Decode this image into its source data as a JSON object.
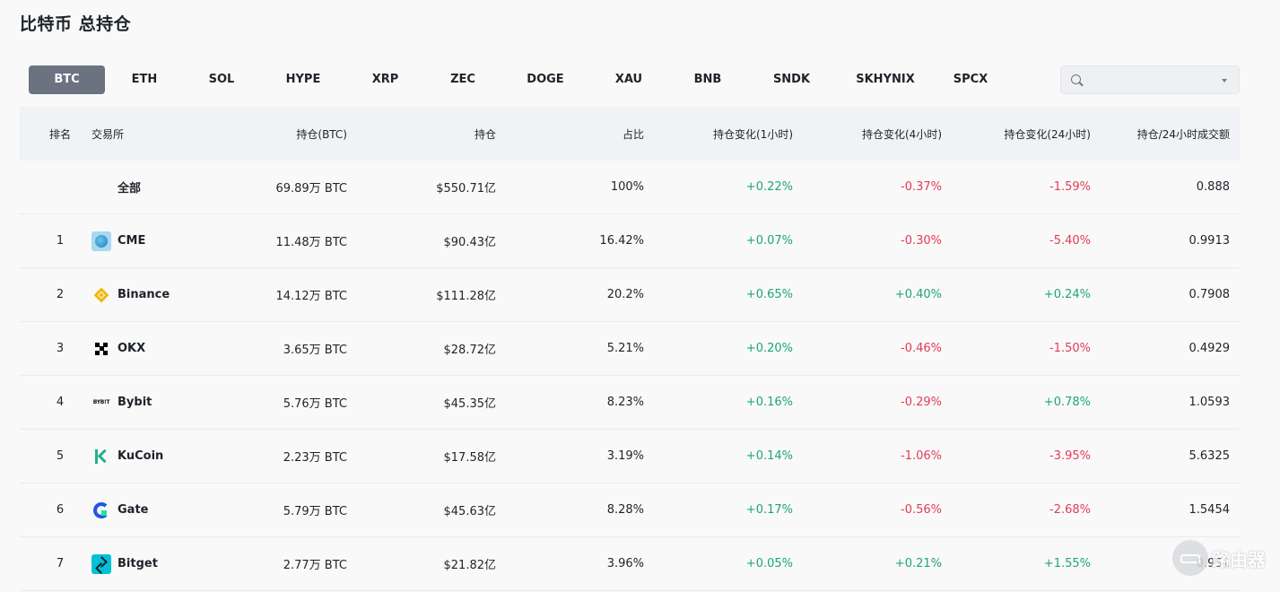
{
  "page": {
    "title": "比特币 总持仓"
  },
  "tabs": [
    {
      "label": "BTC",
      "active": true
    },
    {
      "label": "ETH"
    },
    {
      "label": "SOL"
    },
    {
      "label": "HYPE"
    },
    {
      "label": "XRP"
    },
    {
      "label": "ZEC"
    },
    {
      "label": "DOGE"
    },
    {
      "label": "XAU"
    },
    {
      "label": "BNB"
    },
    {
      "label": "SNDK"
    },
    {
      "label": "SKHYNIX"
    },
    {
      "label": "SPCX"
    }
  ],
  "search": {
    "value": "",
    "placeholder": ""
  },
  "table": {
    "headers": {
      "rank": "排名",
      "exchange": "交易所",
      "oi_btc": "持仓(BTC)",
      "oi_value": "持仓",
      "share": "占比",
      "chg_1h": "持仓变化(1小时)",
      "chg_4h": "持仓变化(4小时)",
      "chg_24h": "持仓变化(24小时)",
      "ratio": "持仓/24小时成交额"
    },
    "total": {
      "label": "全部",
      "oi_btc": "69.89万 BTC",
      "oi_value": "$550.71亿",
      "share": "100%",
      "chg_1h": "+0.22%",
      "chg_4h": "-0.37%",
      "chg_24h": "-1.59%",
      "ratio": "0.888"
    },
    "rows": [
      {
        "rank": "1",
        "exchange": "CME",
        "logo": "cme-globe-icon",
        "oi_btc": "11.48万 BTC",
        "oi_value": "$90.43亿",
        "share": "16.42%",
        "chg_1h": "+0.07%",
        "chg_4h": "-0.30%",
        "chg_24h": "-5.40%",
        "ratio": "0.9913"
      },
      {
        "rank": "2",
        "exchange": "Binance",
        "logo": "binance-icon",
        "oi_btc": "14.12万 BTC",
        "oi_value": "$111.28亿",
        "share": "20.2%",
        "chg_1h": "+0.65%",
        "chg_4h": "+0.40%",
        "chg_24h": "+0.24%",
        "ratio": "0.7908"
      },
      {
        "rank": "3",
        "exchange": "OKX",
        "logo": "okx-icon",
        "oi_btc": "3.65万 BTC",
        "oi_value": "$28.72亿",
        "share": "5.21%",
        "chg_1h": "+0.20%",
        "chg_4h": "-0.46%",
        "chg_24h": "-1.50%",
        "ratio": "0.4929"
      },
      {
        "rank": "4",
        "exchange": "Bybit",
        "logo": "bybit-icon",
        "oi_btc": "5.76万 BTC",
        "oi_value": "$45.35亿",
        "share": "8.23%",
        "chg_1h": "+0.16%",
        "chg_4h": "-0.29%",
        "chg_24h": "+0.78%",
        "ratio": "1.0593"
      },
      {
        "rank": "5",
        "exchange": "KuCoin",
        "logo": "kucoin-icon",
        "oi_btc": "2.23万 BTC",
        "oi_value": "$17.58亿",
        "share": "3.19%",
        "chg_1h": "+0.14%",
        "chg_4h": "-1.06%",
        "chg_24h": "-3.95%",
        "ratio": "5.6325"
      },
      {
        "rank": "6",
        "exchange": "Gate",
        "logo": "gate-icon",
        "oi_btc": "5.79万 BTC",
        "oi_value": "$45.63亿",
        "share": "8.28%",
        "chg_1h": "+0.17%",
        "chg_4h": "-0.56%",
        "chg_24h": "-2.68%",
        "ratio": "1.5454"
      },
      {
        "rank": "7",
        "exchange": "Bitget",
        "logo": "bitget-icon",
        "oi_btc": "2.77万 BTC",
        "oi_value": "$21.82亿",
        "share": "3.96%",
        "chg_1h": "+0.05%",
        "chg_4h": "+0.21%",
        "chg_24h": "+1.55%",
        "ratio": "0.951"
      }
    ]
  },
  "watermark": {
    "text": "路由器",
    "icon": "router-icon"
  },
  "colors": {
    "positive": "#1ea672",
    "negative": "#e33b54",
    "active_tab": "#6b7280"
  }
}
